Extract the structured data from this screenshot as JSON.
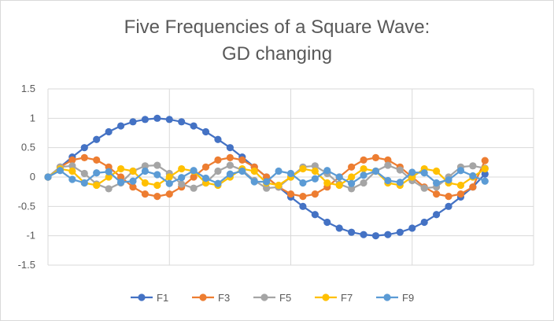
{
  "chart_data": {
    "type": "line",
    "title": [
      "Five Frequencies of a Square Wave:",
      "GD changing"
    ],
    "xlabel": "",
    "ylabel": "",
    "ylim": [
      -1.5,
      1.5
    ],
    "yticks": [
      1.5,
      1,
      0.5,
      0,
      -0.5,
      -1,
      -1.5
    ],
    "ytick_labels": [
      "1.5",
      "1",
      "0.5",
      "0",
      "-0.5",
      "-1",
      "-1.5"
    ],
    "x": [
      0,
      1,
      2,
      3,
      4,
      5,
      6,
      7,
      8,
      9,
      10,
      11,
      12,
      13,
      14,
      15,
      16,
      17,
      18,
      19,
      20,
      21,
      22,
      23,
      24,
      25,
      26,
      27,
      28,
      29,
      30,
      31,
      32,
      33,
      34,
      35,
      36
    ],
    "grid": "vertical-and-horizontal",
    "legend_position": "bottom",
    "series": [
      {
        "name": "F1",
        "color": "#4472c4",
        "values": [
          0,
          0.17,
          0.34,
          0.5,
          0.64,
          0.77,
          0.87,
          0.94,
          0.98,
          1,
          0.98,
          0.94,
          0.87,
          0.77,
          0.64,
          0.5,
          0.34,
          0.17,
          0,
          -0.17,
          -0.34,
          -0.5,
          -0.64,
          -0.77,
          -0.87,
          -0.94,
          -0.98,
          -1,
          -0.98,
          -0.94,
          -0.87,
          -0.77,
          -0.64,
          -0.5,
          -0.34,
          -0.17,
          0.05
        ]
      },
      {
        "name": "F3",
        "color": "#ed7d31",
        "values": [
          0,
          0.17,
          0.29,
          0.33,
          0.29,
          0.17,
          0,
          -0.17,
          -0.29,
          -0.33,
          -0.29,
          -0.17,
          0,
          0.17,
          0.29,
          0.33,
          0.29,
          0.17,
          0,
          -0.17,
          -0.29,
          -0.33,
          -0.29,
          -0.17,
          0,
          0.17,
          0.29,
          0.33,
          0.29,
          0.17,
          0,
          -0.17,
          -0.29,
          -0.33,
          -0.29,
          -0.17,
          0.28
        ]
      },
      {
        "name": "F5",
        "color": "#a5a5a5",
        "values": [
          0,
          0.17,
          0.19,
          0.06,
          -0.12,
          -0.2,
          -0.1,
          0.1,
          0.19,
          0.2,
          0.06,
          -0.12,
          -0.19,
          -0.1,
          0.1,
          0.2,
          0.12,
          -0.06,
          -0.19,
          -0.17,
          0,
          0.17,
          0.19,
          0.06,
          -0.12,
          -0.2,
          -0.1,
          0.1,
          0.2,
          0.12,
          -0.06,
          -0.19,
          -0.17,
          0,
          0.17,
          0.19,
          0.15
        ]
      },
      {
        "name": "F7",
        "color": "#ffc000",
        "values": [
          0,
          0.14,
          0.1,
          -0.1,
          -0.14,
          0,
          0.14,
          0.1,
          -0.1,
          -0.14,
          0,
          0.14,
          0.1,
          -0.1,
          -0.14,
          0,
          0.14,
          0.1,
          -0.1,
          -0.14,
          0,
          0.14,
          0.1,
          -0.1,
          -0.14,
          0,
          0.14,
          0.1,
          -0.1,
          -0.14,
          0,
          0.14,
          0.1,
          -0.1,
          -0.14,
          0,
          0.14
        ]
      },
      {
        "name": "F9",
        "color": "#5b9bd5",
        "values": [
          0,
          0.11,
          -0.04,
          -0.1,
          0.07,
          0.09,
          -0.09,
          -0.07,
          0.1,
          0.04,
          -0.11,
          -0.01,
          0.11,
          -0.02,
          -0.11,
          0.05,
          0.1,
          -0.08,
          -0.08,
          0.1,
          0.06,
          -0.1,
          -0.03,
          0.11,
          0,
          -0.11,
          0.03,
          0.1,
          -0.06,
          -0.09,
          0.08,
          0.07,
          -0.1,
          -0.05,
          0.11,
          0.02,
          -0.07
        ]
      }
    ]
  }
}
